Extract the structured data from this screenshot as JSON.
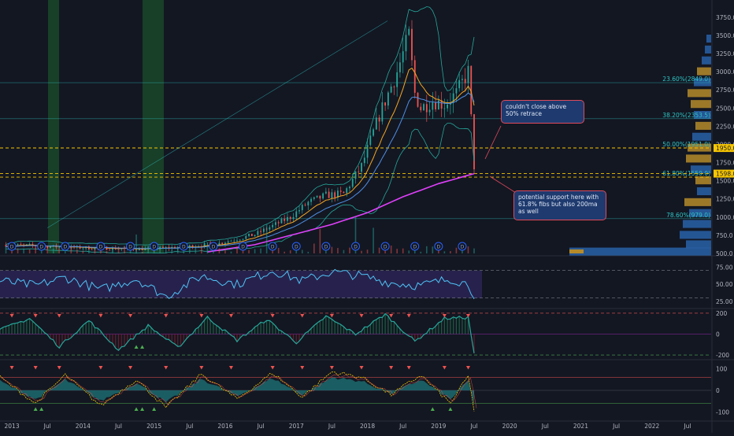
{
  "colors": {
    "background": "#131722",
    "candle_up": "#26a69a",
    "candle_down": "#ef5350",
    "ma200": "#e040fb",
    "ema_fast": "#f5a623",
    "ema_slow": "#4f8fe6",
    "bollinger": "#26a69a",
    "fib_line": "#2ec4c4",
    "fib_50_line": "#f7c600",
    "fib_618_line": "#f7c600",
    "volume_profile": "#2962a8",
    "volume_profile_poc": "#b58b2a",
    "rsi_line": "#4fc3f7",
    "rsi_band": "#2a2352",
    "osc_line": "#26a69a",
    "wave_fast": "#f7c600",
    "wave_area": "#1d6f73",
    "signal_down": "#ef5350",
    "signal_up": "#4caf50",
    "callout_fill": "#1e3a6e",
    "callout_border": "#e04a5c"
  },
  "chart_data": {
    "type": "candlestick",
    "x_axis": {
      "range": [
        "2012-11",
        "2022-11"
      ],
      "tick_labels": [
        "2013",
        "Jul",
        "2014",
        "Jul",
        "2015",
        "Jul",
        "2016",
        "Jul",
        "2017",
        "Jul",
        "2018",
        "Jul",
        "2019",
        "Jul",
        "2020",
        "Jul",
        "2021",
        "Jul",
        "2022",
        "Jul"
      ]
    },
    "price_axis": {
      "ylim": [
        500,
        3900
      ],
      "tick_labels": [
        "3750.0",
        "3500.0",
        "3250.0",
        "3000.0",
        "2750.0",
        "2500.0",
        "2250.0",
        "2000.0",
        "1750.0",
        "1500.0",
        "1250.0",
        "1000.0",
        "750.0",
        "500.0"
      ],
      "tick_values": [
        3750,
        3500,
        3250,
        3000,
        2750,
        2500,
        2250,
        2000,
        1750,
        1500,
        1250,
        1000,
        750,
        500
      ],
      "price_tags": [
        {
          "label": "1950.0",
          "value": 1950
        },
        {
          "label": "1598.0",
          "value": 1598
        }
      ]
    },
    "series": [
      {
        "name": "price",
        "x": [
          "2012-12",
          "2013-06",
          "2013-12",
          "2014-06",
          "2014-12",
          "2015-06",
          "2015-12",
          "2016-06",
          "2016-12",
          "2017-03",
          "2017-06",
          "2017-09",
          "2017-12",
          "2018-03",
          "2018-06",
          "2018-08",
          "2018-09",
          "2018-10",
          "2018-12",
          "2019-02",
          "2019-04",
          "2019-06",
          "2019-07"
        ],
        "values": [
          620,
          600,
          580,
          570,
          560,
          590,
          640,
          760,
          1000,
          1200,
          1300,
          1320,
          1700,
          2400,
          3000,
          3500,
          2700,
          2500,
          2600,
          2550,
          2700,
          3000,
          1700
        ]
      },
      {
        "name": "ma200",
        "x": [
          "2015-10",
          "2016-06",
          "2017-01",
          "2017-07",
          "2018-01",
          "2018-07",
          "2019-01",
          "2019-07"
        ],
        "values": [
          520,
          620,
          770,
          900,
          1060,
          1280,
          1460,
          1598
        ]
      }
    ],
    "fibonacci_levels": [
      {
        "label": "23.60%(2849.0)",
        "value": 2849
      },
      {
        "label": "38.20%(2353.5)",
        "value": 2353.5
      },
      {
        "label": "50.00%(1951.0)",
        "value": 1951
      },
      {
        "label": "61.80%(1550.0)",
        "value": 1550
      },
      {
        "label": "78.60%(979.0)",
        "value": 979
      }
    ],
    "event_marker_label": "D",
    "rsi_panel": {
      "tick_labels": [
        "75.00",
        "50.00",
        "25.00"
      ],
      "tick_values": [
        75,
        50,
        25
      ],
      "ylim": [
        17,
        88
      ],
      "series": [
        {
          "x": [
            "2012-11",
            "2013-05",
            "2013-10",
            "2014-04",
            "2014-10",
            "2015-03",
            "2015-09",
            "2016-03",
            "2016-09",
            "2017-02",
            "2017-07",
            "2017-12",
            "2018-05",
            "2018-10",
            "2019-03",
            "2019-06",
            "2019-07"
          ],
          "values": [
            55,
            48,
            60,
            42,
            58,
            32,
            62,
            50,
            70,
            55,
            68,
            62,
            52,
            48,
            58,
            50,
            35
          ]
        }
      ]
    },
    "osc_panel": {
      "tick_labels": [
        "200",
        "0",
        "-200"
      ],
      "tick_values": [
        200,
        0,
        -200
      ],
      "ylim": [
        -230,
        230
      ],
      "series": [
        {
          "x": [
            "2012-11",
            "2013-04",
            "2013-09",
            "2014-02",
            "2014-07",
            "2014-12",
            "2015-05",
            "2015-10",
            "2016-03",
            "2016-08",
            "2017-01",
            "2017-06",
            "2017-11",
            "2018-04",
            "2018-09",
            "2019-02",
            "2019-06",
            "2019-07"
          ],
          "values": [
            40,
            150,
            -120,
            130,
            -150,
            80,
            -130,
            160,
            -60,
            140,
            -80,
            170,
            0,
            190,
            -70,
            150,
            160,
            -180
          ]
        }
      ]
    },
    "wave_panel": {
      "tick_labels": [
        "100",
        "0",
        "-100"
      ],
      "tick_values": [
        100,
        0,
        -100
      ],
      "ylim": [
        -130,
        130
      ],
      "series": [
        {
          "x": [
            "2012-11",
            "2013-05",
            "2013-10",
            "2014-04",
            "2014-10",
            "2015-03",
            "2015-09",
            "2016-03",
            "2016-09",
            "2017-02",
            "2017-07",
            "2017-12",
            "2018-05",
            "2018-10",
            "2019-03",
            "2019-06",
            "2019-07"
          ],
          "values": [
            60,
            -60,
            70,
            -70,
            50,
            -80,
            75,
            -40,
            80,
            -30,
            85,
            60,
            -20,
            70,
            -60,
            65,
            -90
          ]
        }
      ]
    }
  },
  "annotations": [
    {
      "text": "couldn't close above 50% retrace"
    },
    {
      "text": "potential support here with 61.8% fibs but also 200ma as well"
    }
  ]
}
